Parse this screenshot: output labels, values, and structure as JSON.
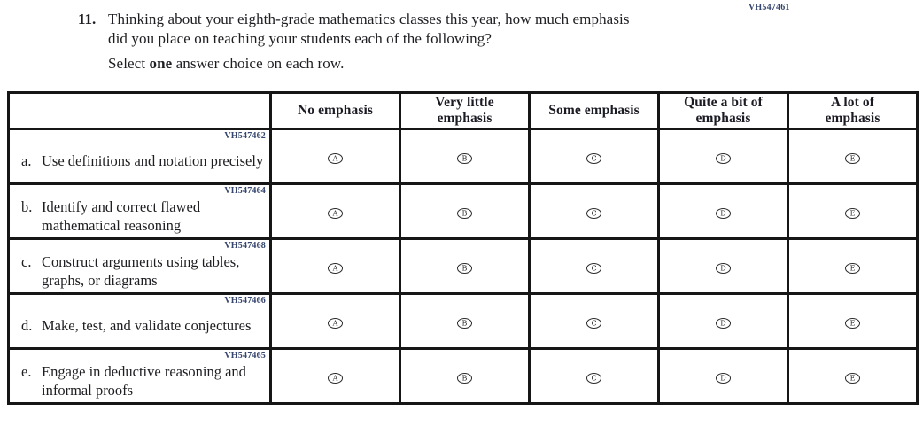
{
  "meta": {
    "form_code": "VH547461"
  },
  "question": {
    "number": "11.",
    "text": "Thinking about your eighth-grade mathematics classes this year, how much emphasis\ndid you place on teaching your students each of the following?",
    "instruction_prefix": "Select ",
    "instruction_bold": "one",
    "instruction_suffix": " answer choice on each row."
  },
  "table": {
    "columns": [
      "No emphasis",
      "Very little\nemphasis",
      "Some emphasis",
      "Quite a bit of\nemphasis",
      "A lot of\nemphasis"
    ],
    "options": [
      "A",
      "B",
      "C",
      "D",
      "E"
    ],
    "rows": [
      {
        "code": "VH547462",
        "letter": "a.",
        "label": "Use definitions and notation precisely"
      },
      {
        "code": "VH547464",
        "letter": "b.",
        "label": "Identify and correct flawed mathematical reasoning"
      },
      {
        "code": "VH547468",
        "letter": "c.",
        "label": "Construct arguments using tables, graphs, or diagrams"
      },
      {
        "code": "VH547466",
        "letter": "d.",
        "label": "Make, test, and validate conjectures"
      },
      {
        "code": "VH547465",
        "letter": "e.",
        "label": "Engage in deductive reasoning and informal proofs"
      }
    ]
  },
  "colors": {
    "ink": "#1e1e22",
    "code_blue": "#35456e",
    "border": "#161616",
    "background": "#ffffff"
  }
}
